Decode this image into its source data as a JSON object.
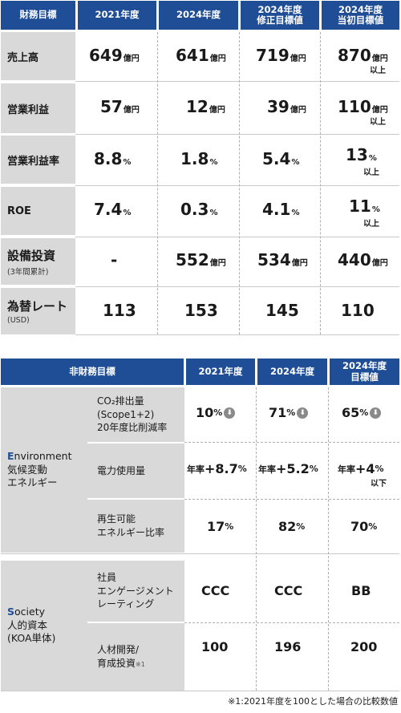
{
  "financial": {
    "headers": [
      "財務目標",
      "2021年度",
      "2024年度",
      "2024年度\n修正目標値",
      "2024年度\n当初目標値"
    ],
    "header_lines": {
      "c3a": "2024年度",
      "c3b": "修正目標値",
      "c4a": "2024年度",
      "c4b": "当初目標値"
    },
    "rows": [
      {
        "label": "売上高",
        "sub": "",
        "values": [
          "649",
          "641",
          "719",
          "870"
        ],
        "units": [
          "億円",
          "億円",
          "億円",
          "億円"
        ],
        "note4": "以上"
      },
      {
        "label": "営業利益",
        "sub": "",
        "values": [
          "57",
          "12",
          "39",
          "110"
        ],
        "units": [
          "億円",
          "億円",
          "億円",
          "億円"
        ],
        "note4": "以上"
      },
      {
        "label": "営業利益率",
        "sub": "",
        "values": [
          "8.8",
          "1.8",
          "5.4",
          "13"
        ],
        "units": [
          "%",
          "%",
          "%",
          "%"
        ],
        "note4": "以上"
      },
      {
        "label": "ROE",
        "sub": "",
        "values": [
          "7.4",
          "0.3",
          "4.1",
          "11"
        ],
        "units": [
          "%",
          "%",
          "%",
          "%"
        ],
        "note4": "以上"
      },
      {
        "label": "設備投資",
        "sub": "(3年間累計)",
        "values": [
          "-",
          "552",
          "534",
          "440"
        ],
        "units": [
          "",
          "億円",
          "億円",
          "億円"
        ],
        "note4": ""
      },
      {
        "label": "為替レート",
        "sub": "(USD)",
        "values": [
          "113",
          "153",
          "145",
          "110"
        ],
        "units": [
          "",
          "",
          "",
          ""
        ],
        "note4": ""
      }
    ]
  },
  "nonfinancial": {
    "header_title": "非財務目標",
    "col_2021": "2021年度",
    "col_2024": "2024年度",
    "col_target_a": "2024年度",
    "col_target_b": "目標値",
    "env": {
      "cap": "E",
      "rest": "nvironment",
      "line2": "気候変動",
      "line3": "エネルギー",
      "items": [
        {
          "l1": "CO₂排出量",
          "l2": "(Scope1+2)",
          "l3": "20年度比削減率",
          "v1": "10",
          "v2": "71",
          "v3": "65",
          "unit": "%",
          "icon": "down-arrow-circle-icon"
        },
        {
          "l1": "電力使用量",
          "l2": "",
          "l3": "",
          "pre": "年率",
          "v1": "+8.7",
          "v2": "+5.2",
          "v3": "+4",
          "unit": "%",
          "note3": "以下"
        },
        {
          "l1": "再生可能",
          "l2": "エネルギー比率",
          "l3": "",
          "v1": "17",
          "v2": "82",
          "v3": "70",
          "unit": "%"
        }
      ]
    },
    "soc": {
      "cap": "S",
      "rest": "ociety",
      "line2": "人的資本",
      "line3": "(KOA単体)",
      "items": [
        {
          "l1": "社員",
          "l2": "エンゲージメント",
          "l3": "レーティング",
          "v1": "CCC",
          "v2": "CCC",
          "v3": "BB"
        },
        {
          "l1": "人材開発/",
          "l2": "育成投資",
          "l2sup": "※1",
          "v1": "100",
          "v2": "196",
          "v3": "200"
        }
      ]
    }
  },
  "footnote": "※1:2021年度を100とした場合の比較数値"
}
